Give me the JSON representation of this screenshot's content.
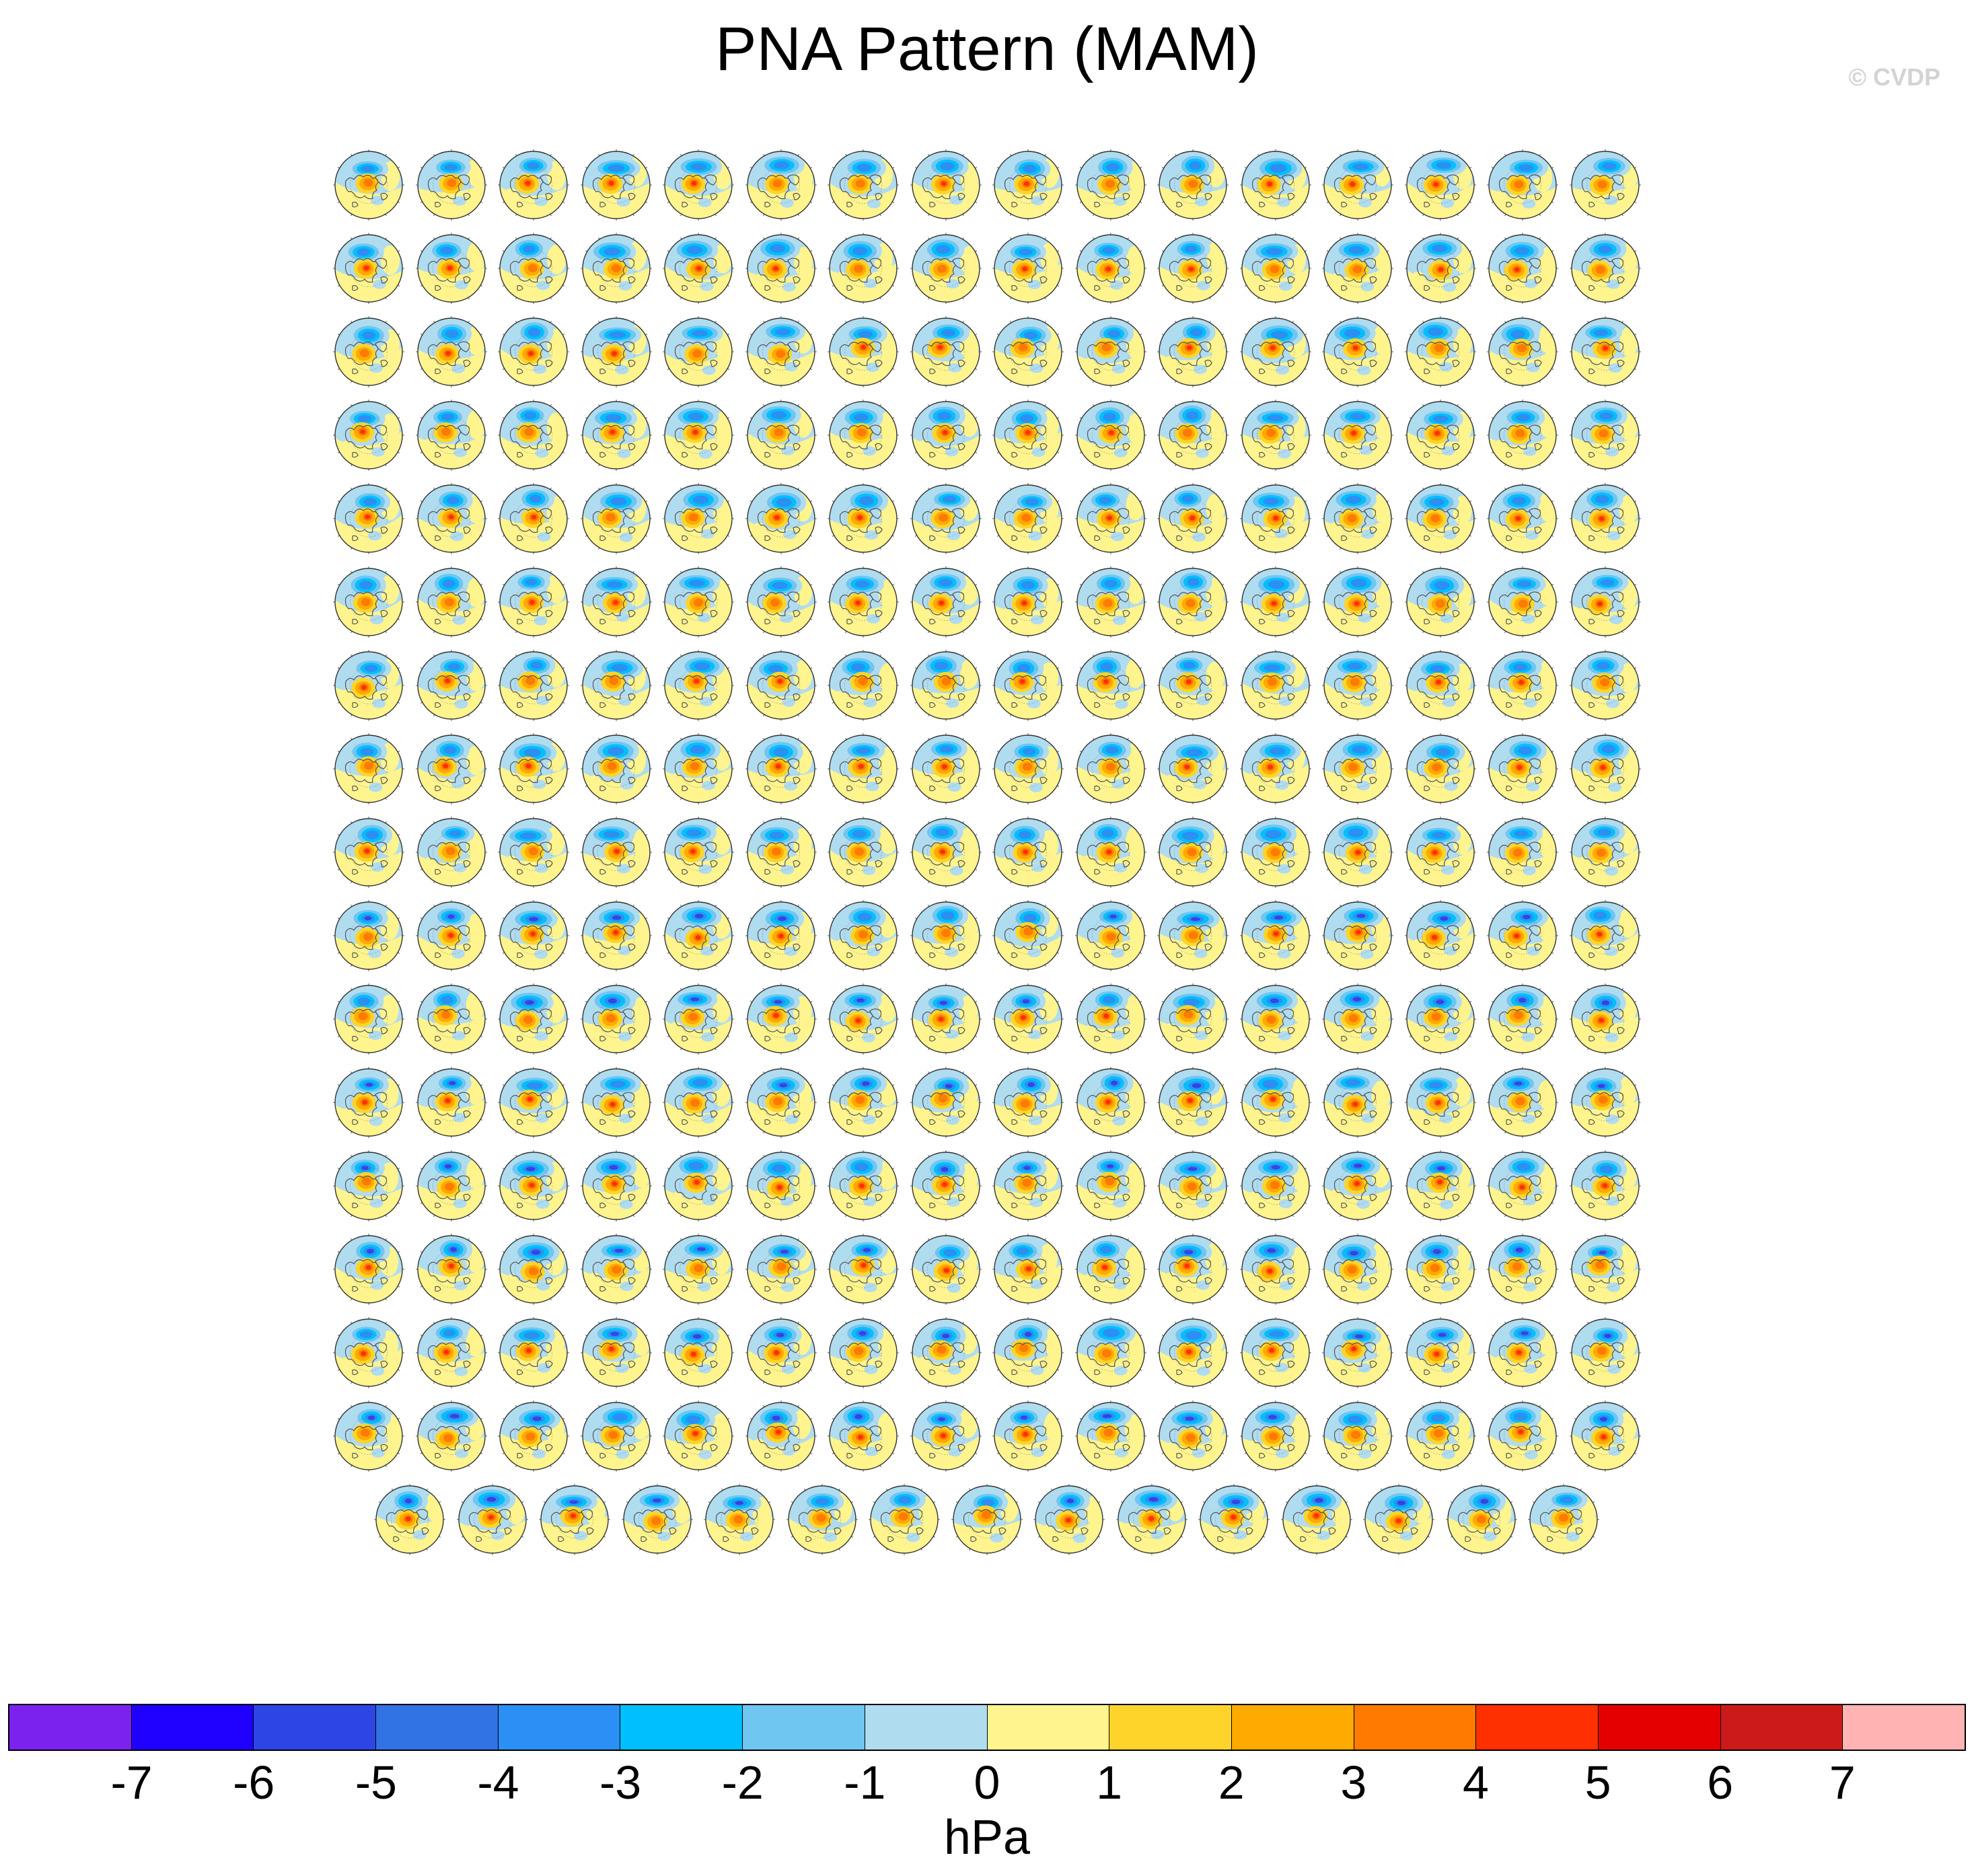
{
  "title": "PNA Pattern (MAM)",
  "copyright": "© CVDP",
  "colorbar": {
    "units": "hPa",
    "tick_labels": [
      "-7",
      "-6",
      "-5",
      "-4",
      "-3",
      "-2",
      "-1",
      "0",
      "1",
      "2",
      "3",
      "4",
      "5",
      "6",
      "7"
    ],
    "colors": [
      "#7c22ee",
      "#1f00ff",
      "#2e45e6",
      "#3273e4",
      "#2a90f5",
      "#00bfff",
      "#6fc6f1",
      "#b0dcf0",
      "#fff48d",
      "#ffd42a",
      "#ffaa00",
      "#ff7a00",
      "#ff3000",
      "#e50000",
      "#cc1a1a",
      "#ffb3b3"
    ]
  },
  "map_panels": {
    "grid_rows": 17,
    "grid_cols": 16,
    "last_row_count": 15,
    "panel_caption_text": "",
    "projection": "north-polar-stereographic",
    "pattern_colors": {
      "pacific_low": "#2a90f5",
      "pacific_low_core": "#2e45e6",
      "north_america_high": "#ffaa00",
      "north_america_high_core": "#ff3000",
      "background_positive": "#fff48d",
      "background_negative": "#b0dcf0",
      "coastline": "#555555"
    }
  }
}
